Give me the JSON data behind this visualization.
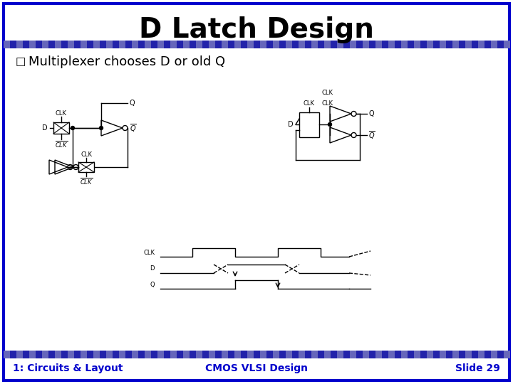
{
  "title": "D Latch Design",
  "subtitle": "Multiplexer chooses D or old Q",
  "footer_left": "1: Circuits & Layout",
  "footer_center": "CMOS VLSI Design",
  "footer_right": "Slide 29",
  "border_color": "#0000CC",
  "title_color": "#000000",
  "subtitle_color": "#000000",
  "footer_color": "#0000CC",
  "body_bg": "#FFFFFF",
  "title_fontsize": 28,
  "subtitle_fontsize": 13,
  "footer_fontsize": 10
}
